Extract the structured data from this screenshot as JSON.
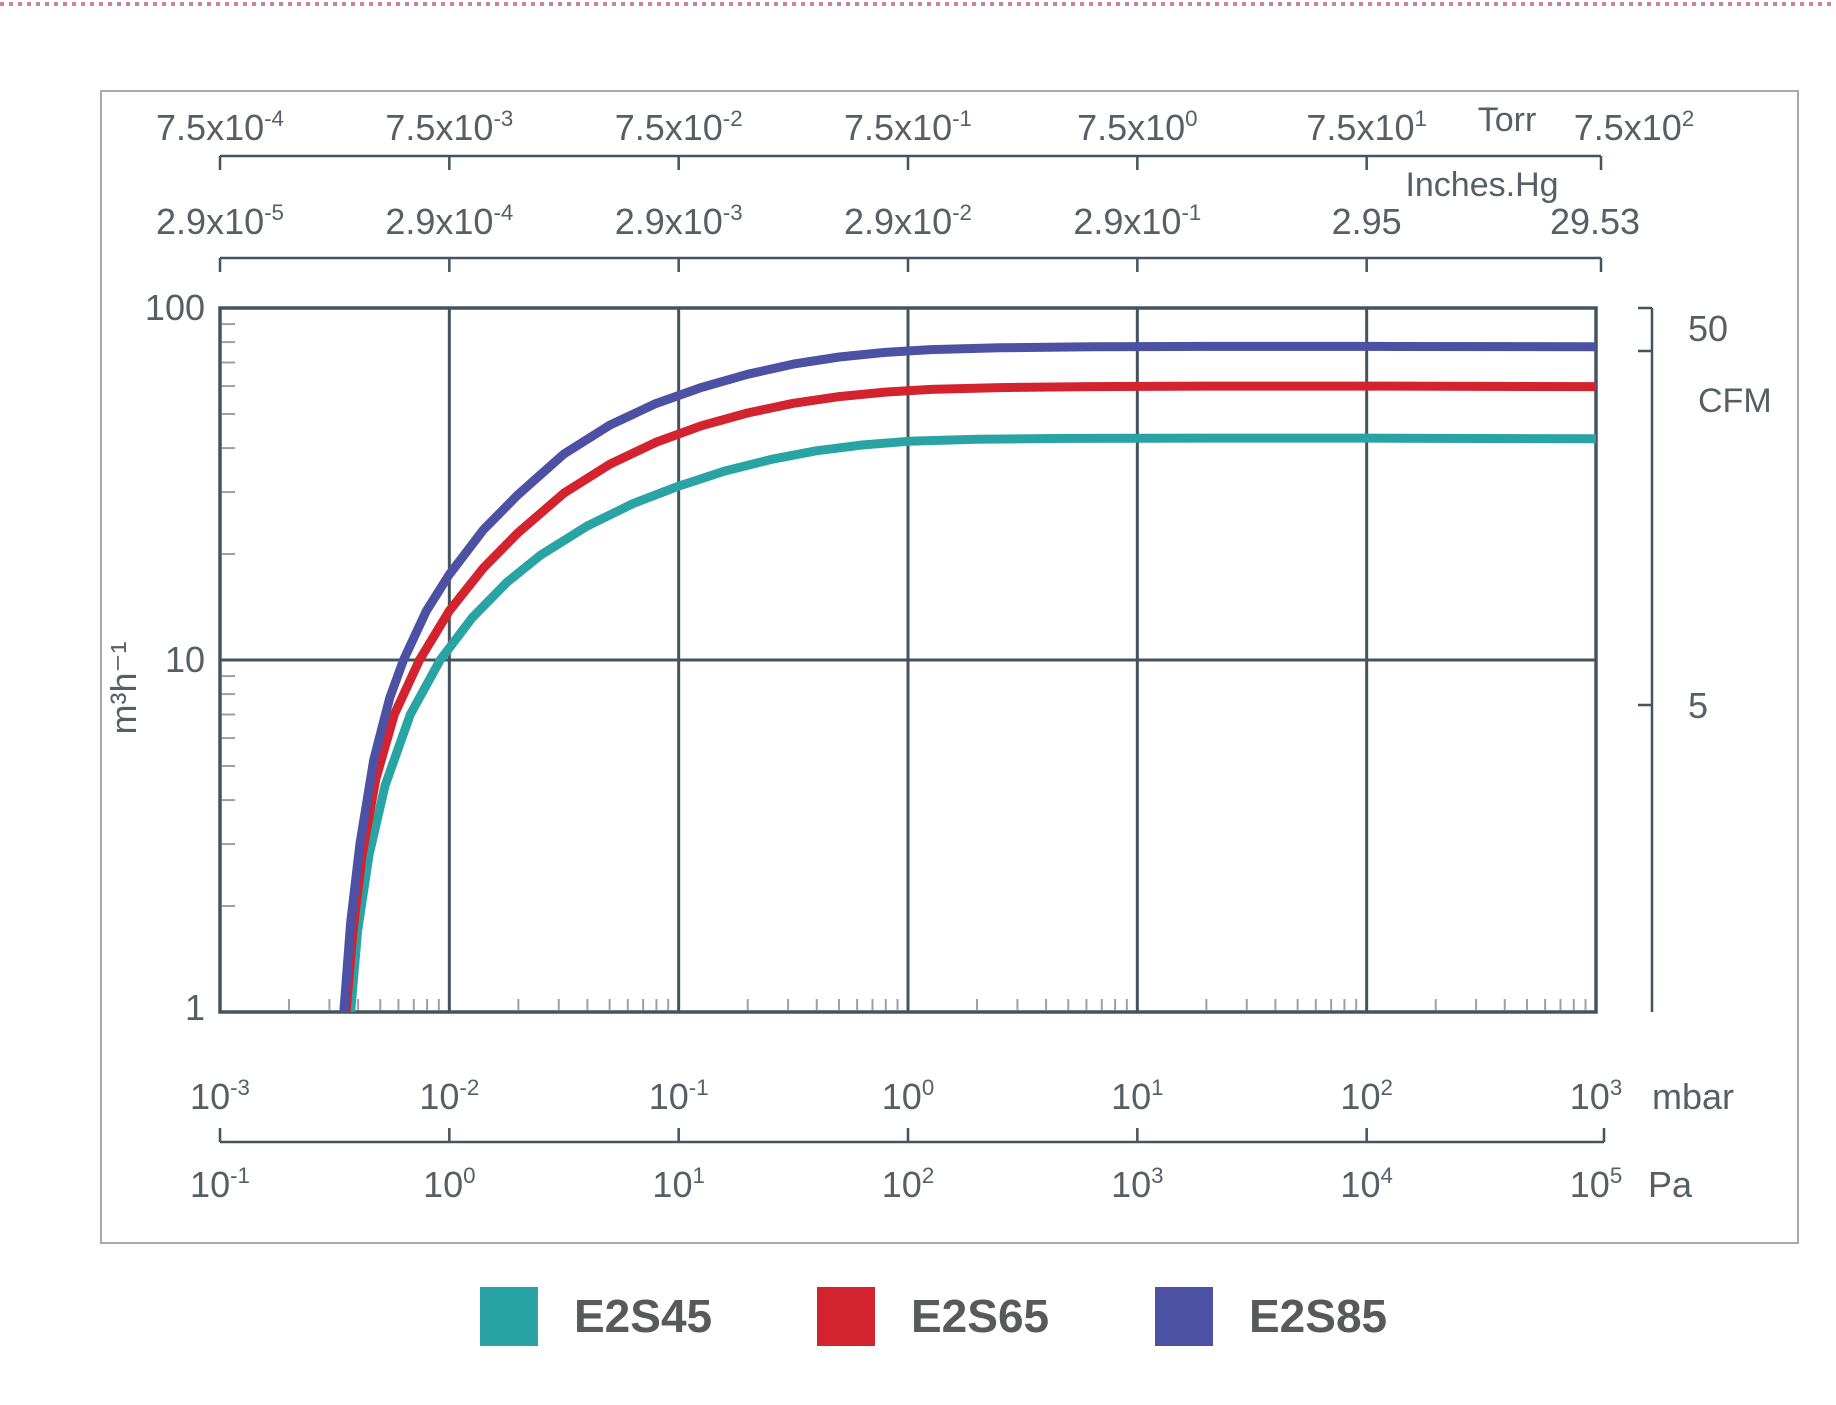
{
  "page": {
    "frame_color": "#a7a9ac",
    "top_rule_color": "#cf8392",
    "grid_color": "#435460",
    "minor_tick_color": "#98a1a8",
    "text_color": "#565f66"
  },
  "axes": {
    "torr": {
      "unit": "Torr",
      "labels": [
        {
          "t": "7.5x10",
          "s": "-4"
        },
        {
          "t": "7.5x10",
          "s": "-3"
        },
        {
          "t": "7.5x10",
          "s": "-2"
        },
        {
          "t": "7.5x10",
          "s": "-1"
        },
        {
          "t": "7.5x10",
          "s": "0"
        },
        {
          "t": "7.5x10",
          "s": "1"
        },
        {
          "t": "7.5x10",
          "s": "2"
        }
      ]
    },
    "inches_hg": {
      "unit": "Inches.Hg",
      "labels": [
        {
          "t": "2.9x10",
          "s": "-5"
        },
        {
          "t": "2.9x10",
          "s": "-4"
        },
        {
          "t": "2.9x10",
          "s": "-3"
        },
        {
          "t": "2.9x10",
          "s": "-2"
        },
        {
          "t": "2.9x10",
          "s": "-1"
        },
        {
          "t": "2.95",
          "s": ""
        },
        {
          "t": "29.53",
          "s": ""
        }
      ]
    },
    "mbar": {
      "unit": "mbar",
      "labels": [
        {
          "t": "10",
          "s": "-3"
        },
        {
          "t": "10",
          "s": "-2"
        },
        {
          "t": "10",
          "s": "-1"
        },
        {
          "t": "10",
          "s": "0"
        },
        {
          "t": "10",
          "s": "1"
        },
        {
          "t": "10",
          "s": "2"
        },
        {
          "t": "10",
          "s": "3"
        }
      ]
    },
    "pa": {
      "unit": "Pa",
      "labels": [
        {
          "t": "10",
          "s": "-1"
        },
        {
          "t": "10",
          "s": "0"
        },
        {
          "t": "10",
          "s": "1"
        },
        {
          "t": "10",
          "s": "2"
        },
        {
          "t": "10",
          "s": "3"
        },
        {
          "t": "10",
          "s": "4"
        },
        {
          "t": "10",
          "s": "5"
        }
      ]
    },
    "y_left": {
      "unit": "m³h⁻¹",
      "labels": [
        "100",
        "10",
        "1"
      ]
    },
    "y_right": {
      "unit": "CFM",
      "labels": [
        "50",
        "5"
      ]
    }
  },
  "legend": [
    {
      "label": "E2S45",
      "color": "#2AA3A5"
    },
    {
      "label": "E2S65",
      "color": "#D2232F"
    },
    {
      "label": "E2S85",
      "color": "#4C51A3"
    }
  ],
  "chart_data": {
    "type": "line",
    "title": "",
    "x_axis": {
      "scale": "log",
      "units": [
        "Torr",
        "Inches.Hg",
        "mbar",
        "Pa"
      ],
      "range_mbar": [
        0.001,
        1000
      ]
    },
    "y_axis": {
      "scale": "log",
      "unit_left": "m³h⁻¹",
      "unit_right": "CFM",
      "range_m3h": [
        1,
        100
      ],
      "cfm_marks": [
        50,
        5
      ]
    },
    "grid": {
      "vertical_decades_mbar": [
        0.01,
        0.1,
        1,
        10,
        100
      ],
      "horizontal_lines_m3h": [
        10
      ]
    },
    "legend_position": "bottom",
    "series": [
      {
        "name": "E2S45",
        "color": "#2AA3A5",
        "peak_speed_m3h": 42.7,
        "points_logmbar_m3h": [
          [
            -2.43,
            1
          ],
          [
            -2.4,
            1.7
          ],
          [
            -2.35,
            2.8
          ],
          [
            -2.28,
            4.4
          ],
          [
            -2.17,
            7
          ],
          [
            -2.04,
            10
          ],
          [
            -1.9,
            13.2
          ],
          [
            -1.75,
            16.6
          ],
          [
            -1.6,
            19.9
          ],
          [
            -1.4,
            24
          ],
          [
            -1.2,
            27.8
          ],
          [
            -1.0,
            31.2
          ],
          [
            -0.8,
            34.4
          ],
          [
            -0.6,
            37.1
          ],
          [
            -0.4,
            39.3
          ],
          [
            -0.2,
            40.8
          ],
          [
            0,
            41.8
          ],
          [
            0.3,
            42.4
          ],
          [
            0.7,
            42.6
          ],
          [
            1.3,
            42.7
          ],
          [
            2,
            42.7
          ],
          [
            3,
            42.5
          ]
        ]
      },
      {
        "name": "E2S65",
        "color": "#D2232F",
        "peak_speed_m3h": 60,
        "points_logmbar_m3h": [
          [
            -2.45,
            1
          ],
          [
            -2.42,
            1.7
          ],
          [
            -2.38,
            2.8
          ],
          [
            -2.32,
            4.6
          ],
          [
            -2.24,
            7
          ],
          [
            -2.13,
            10
          ],
          [
            -2.0,
            13.8
          ],
          [
            -1.85,
            18.3
          ],
          [
            -1.7,
            23
          ],
          [
            -1.5,
            29.8
          ],
          [
            -1.3,
            36
          ],
          [
            -1.1,
            41.5
          ],
          [
            -0.9,
            46.3
          ],
          [
            -0.7,
            50.3
          ],
          [
            -0.5,
            53.6
          ],
          [
            -0.3,
            56
          ],
          [
            -0.1,
            57.7
          ],
          [
            0.1,
            58.7
          ],
          [
            0.4,
            59.4
          ],
          [
            0.8,
            59.8
          ],
          [
            1.3,
            60
          ],
          [
            2,
            60
          ],
          [
            3,
            59.8
          ]
        ]
      },
      {
        "name": "E2S85",
        "color": "#4C51A3",
        "peak_speed_m3h": 77.8,
        "points_logmbar_m3h": [
          [
            -2.46,
            1
          ],
          [
            -2.43,
            1.8
          ],
          [
            -2.39,
            3
          ],
          [
            -2.33,
            5.2
          ],
          [
            -2.26,
            7.8
          ],
          [
            -2.2,
            10
          ],
          [
            -2.1,
            13.8
          ],
          [
            -2.0,
            17.5
          ],
          [
            -1.85,
            23.5
          ],
          [
            -1.7,
            29.5
          ],
          [
            -1.5,
            38.5
          ],
          [
            -1.3,
            46.5
          ],
          [
            -1.1,
            53.5
          ],
          [
            -0.9,
            59.5
          ],
          [
            -0.7,
            64.8
          ],
          [
            -0.5,
            69.3
          ],
          [
            -0.3,
            72.6
          ],
          [
            -0.1,
            74.8
          ],
          [
            0.1,
            76.2
          ],
          [
            0.4,
            77.1
          ],
          [
            0.8,
            77.6
          ],
          [
            1.3,
            77.8
          ],
          [
            2,
            77.8
          ],
          [
            3,
            77.6
          ]
        ]
      }
    ]
  }
}
